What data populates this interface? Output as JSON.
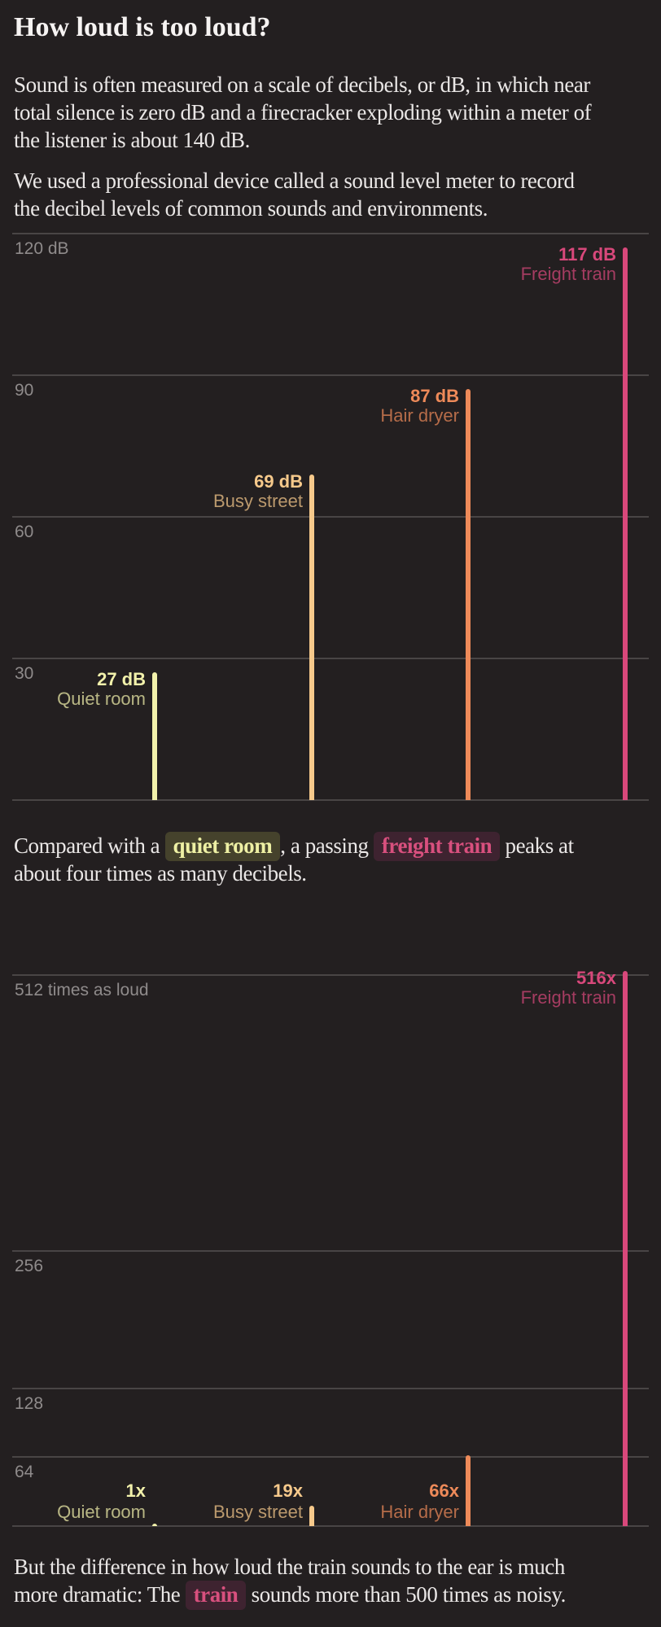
{
  "page": {
    "background_color": "#231f20",
    "title": "How loud is too loud?"
  },
  "intro": {
    "p1_lines": [
      "Sound is often measured on a scale of decibels, or dB, in which near",
      "total silence is zero dB and a firecracker exploding within a meter of",
      "the listener is about 140 dB."
    ],
    "p2_lines": [
      "We used a professional device called a sound level meter to record",
      "the decibel levels of common sounds and environments."
    ]
  },
  "mid_paragraph": {
    "pre": "Compared with a ",
    "highlight1": "quiet room",
    "between": ", a passing ",
    "highlight2": "freight train",
    "post": " peaks at\nabout four times as many decibels."
  },
  "outro_paragraph": {
    "pre": "But the difference in how loud the train sounds to the ear is much\nmore dramatic: The ",
    "highlight": "train",
    "post": " sounds more than 500 times as noisy."
  },
  "highlights": {
    "quiet_room": {
      "text_color": "#eef0a4",
      "bg_color": "#45422c"
    },
    "train": {
      "text_color": "#d8507e",
      "bg_color": "#3e2330"
    }
  },
  "chart_data": [
    {
      "type": "bar",
      "description": "Decibel levels of common sounds",
      "categories": [
        "Quiet room",
        "Busy street",
        "Hair dryer",
        "Freight train"
      ],
      "values": [
        27,
        69,
        87,
        117
      ],
      "value_labels": [
        "27 dB",
        "69 dB",
        "87 dB",
        "117 dB"
      ],
      "unit": "dB",
      "ylim": [
        0,
        120
      ],
      "yticks": [
        {
          "value": 120,
          "label": "120 dB"
        },
        {
          "value": 90,
          "label": "90"
        },
        {
          "value": 60,
          "label": "60"
        },
        {
          "value": 30,
          "label": "30"
        }
      ],
      "grid": true,
      "legend": "none",
      "bar_colors": [
        "#f2f1ab",
        "#f6c98b",
        "#ee8a59",
        "#d8487b"
      ],
      "label_anchor": [
        "top",
        "top",
        "top",
        "top"
      ]
    },
    {
      "type": "bar",
      "description": "Loudness relative to a quiet room",
      "categories": [
        "Quiet room",
        "Busy street",
        "Hair dryer",
        "Freight train"
      ],
      "values": [
        1,
        19,
        66,
        516
      ],
      "value_labels": [
        "1x",
        "19x",
        "66x",
        "516x"
      ],
      "unit": "times as loud",
      "ylim": [
        0,
        530
      ],
      "yticks": [
        {
          "value": 512,
          "label": "512 times as loud"
        },
        {
          "value": 256,
          "label": "256"
        },
        {
          "value": 128,
          "label": "128"
        },
        {
          "value": 64,
          "label": "64"
        }
      ],
      "grid": true,
      "legend": "none",
      "bar_colors": [
        "#f2f1ab",
        "#f6c98b",
        "#ee8a59",
        "#d8487b"
      ],
      "label_anchor": [
        "bottom",
        "bottom",
        "bottom",
        "top"
      ]
    }
  ]
}
